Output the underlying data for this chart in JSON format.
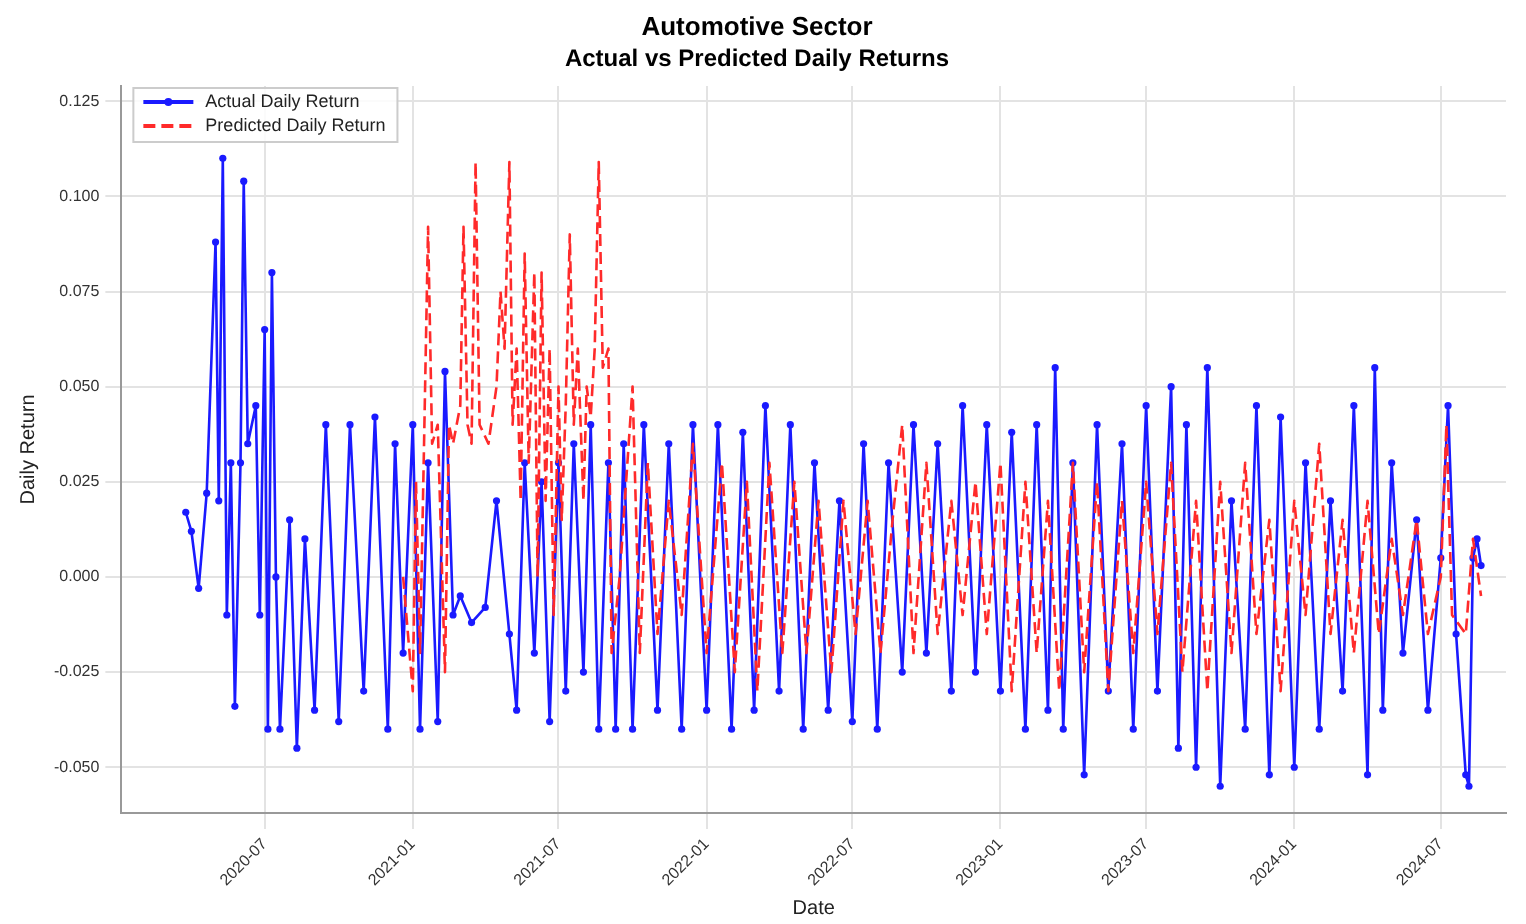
{
  "chart_data": {
    "type": "line",
    "title": "Automotive Sector",
    "subtitle": "Actual vs Predicted Daily Returns",
    "xlabel": "Date",
    "ylabel": "Daily Return",
    "xlim": [
      "2020-01-05",
      "2024-09-20"
    ],
    "xticks": [
      "2020-07",
      "2021-01",
      "2021-07",
      "2022-01",
      "2022-07",
      "2023-01",
      "2023-07",
      "2024-01",
      "2024-07"
    ],
    "ylim": [
      -0.062,
      0.129
    ],
    "yticks": [
      {
        "value": -0.05,
        "label": "-0.050"
      },
      -0.025,
      {
        "value": 0,
        "label": "0.000"
      },
      0.025,
      {
        "value": 0.05,
        "label": "0.050"
      },
      0.075,
      {
        "value": 0.1,
        "label": "0.100"
      },
      0.125
    ],
    "grid": true,
    "legend": "top left",
    "series": [
      {
        "name": "Actual Daily Return",
        "color": "#1a1aff",
        "marker": "circle",
        "line_style": "solid",
        "x": [
          "2020-03-25",
          "2020-04-01",
          "2020-04-10",
          "2020-04-20",
          "2020-05-01",
          "2020-05-05",
          "2020-05-10",
          "2020-05-15",
          "2020-05-20",
          "2020-05-25",
          "2020-06-01",
          "2020-06-05",
          "2020-06-10",
          "2020-06-20",
          "2020-06-25",
          "2020-07-01",
          "2020-07-05",
          "2020-07-10",
          "2020-07-15",
          "2020-07-20",
          "2020-08-01",
          "2020-08-10",
          "2020-08-20",
          "2020-09-01",
          "2020-09-15",
          "2020-10-01",
          "2020-10-15",
          "2020-11-01",
          "2020-11-15",
          "2020-12-01",
          "2020-12-10",
          "2020-12-20",
          "2021-01-01",
          "2021-01-10",
          "2021-01-20",
          "2021-02-01",
          "2021-02-10",
          "2021-02-20",
          "2021-03-01",
          "2021-03-15",
          "2021-04-01",
          "2021-04-15",
          "2021-05-01",
          "2021-05-10",
          "2021-05-20",
          "2021-06-01",
          "2021-06-10",
          "2021-06-20",
          "2021-07-01",
          "2021-07-10",
          "2021-07-20",
          "2021-08-01",
          "2021-08-10",
          "2021-08-20",
          "2021-09-01",
          "2021-09-10",
          "2021-09-20",
          "2021-10-01",
          "2021-10-15",
          "2021-11-01",
          "2021-11-15",
          "2021-12-01",
          "2021-12-15",
          "2022-01-01",
          "2022-01-15",
          "2022-02-01",
          "2022-02-15",
          "2022-03-01",
          "2022-03-15",
          "2022-04-01",
          "2022-04-15",
          "2022-05-01",
          "2022-05-15",
          "2022-06-01",
          "2022-06-15",
          "2022-07-01",
          "2022-07-15",
          "2022-08-01",
          "2022-08-15",
          "2022-09-01",
          "2022-09-15",
          "2022-10-01",
          "2022-10-15",
          "2022-11-01",
          "2022-11-15",
          "2022-12-01",
          "2022-12-15",
          "2023-01-01",
          "2023-01-15",
          "2023-02-01",
          "2023-02-15",
          "2023-03-01",
          "2023-03-10",
          "2023-03-20",
          "2023-04-01",
          "2023-04-15",
          "2023-05-01",
          "2023-05-15",
          "2023-06-01",
          "2023-06-15",
          "2023-07-01",
          "2023-07-15",
          "2023-08-01",
          "2023-08-10",
          "2023-08-20",
          "2023-09-01",
          "2023-09-15",
          "2023-10-01",
          "2023-10-15",
          "2023-11-01",
          "2023-11-15",
          "2023-12-01",
          "2023-12-15",
          "2024-01-01",
          "2024-01-15",
          "2024-02-01",
          "2024-02-15",
          "2024-03-01",
          "2024-03-15",
          "2024-04-01",
          "2024-04-10",
          "2024-04-20",
          "2024-05-01",
          "2024-05-15",
          "2024-06-01",
          "2024-06-15",
          "2024-07-01",
          "2024-07-10",
          "2024-07-20",
          "2024-08-01",
          "2024-08-05",
          "2024-08-10",
          "2024-08-15",
          "2024-08-20"
        ],
        "values": [
          0.017,
          0.012,
          -0.003,
          0.022,
          0.088,
          0.02,
          0.11,
          -0.01,
          0.03,
          -0.034,
          0.03,
          0.104,
          0.035,
          0.045,
          -0.01,
          0.065,
          -0.04,
          0.08,
          0.0,
          -0.04,
          0.015,
          -0.045,
          0.01,
          -0.035,
          0.04,
          -0.038,
          0.04,
          -0.03,
          0.042,
          -0.04,
          0.035,
          -0.02,
          0.04,
          -0.04,
          0.03,
          -0.038,
          0.054,
          -0.01,
          -0.005,
          -0.012,
          -0.008,
          0.02,
          -0.015,
          -0.035,
          0.03,
          -0.02,
          0.025,
          -0.038,
          0.03,
          -0.03,
          0.035,
          -0.025,
          0.04,
          -0.04,
          0.03,
          -0.04,
          0.035,
          -0.04,
          0.04,
          -0.035,
          0.035,
          -0.04,
          0.04,
          -0.035,
          0.04,
          -0.04,
          0.038,
          -0.035,
          0.045,
          -0.03,
          0.04,
          -0.04,
          0.03,
          -0.035,
          0.02,
          -0.038,
          0.035,
          -0.04,
          0.03,
          -0.025,
          0.04,
          -0.02,
          0.035,
          -0.03,
          0.045,
          -0.025,
          0.04,
          -0.03,
          0.038,
          -0.04,
          0.04,
          -0.035,
          0.055,
          -0.04,
          0.03,
          -0.052,
          0.04,
          -0.03,
          0.035,
          -0.04,
          0.045,
          -0.03,
          0.05,
          -0.045,
          0.04,
          -0.05,
          0.055,
          -0.055,
          0.02,
          -0.04,
          0.045,
          -0.052,
          0.042,
          -0.05,
          0.03,
          -0.04,
          0.02,
          -0.03,
          0.045,
          -0.052,
          0.055,
          -0.035,
          0.03,
          -0.02,
          0.015,
          -0.035,
          0.005,
          0.045,
          -0.015,
          -0.052,
          -0.055,
          0.005,
          0.01,
          0.003
        ]
      },
      {
        "name": "Predicted Daily Return",
        "color": "#ff2a2a",
        "marker": "none",
        "line_style": "dashed",
        "x": [
          "2020-12-20",
          "2021-01-01",
          "2021-01-05",
          "2021-01-10",
          "2021-01-15",
          "2021-01-20",
          "2021-01-25",
          "2021-02-01",
          "2021-02-10",
          "2021-02-15",
          "2021-02-20",
          "2021-03-01",
          "2021-03-05",
          "2021-03-10",
          "2021-03-15",
          "2021-03-20",
          "2021-03-25",
          "2021-04-05",
          "2021-04-15",
          "2021-04-20",
          "2021-04-25",
          "2021-05-01",
          "2021-05-05",
          "2021-05-10",
          "2021-05-15",
          "2021-05-20",
          "2021-05-25",
          "2021-06-01",
          "2021-06-05",
          "2021-06-10",
          "2021-06-15",
          "2021-06-20",
          "2021-06-25",
          "2021-07-01",
          "2021-07-05",
          "2021-07-10",
          "2021-07-15",
          "2021-07-20",
          "2021-07-25",
          "2021-08-01",
          "2021-08-05",
          "2021-08-10",
          "2021-08-15",
          "2021-08-20",
          "2021-08-25",
          "2021-09-01",
          "2021-09-05",
          "2021-09-15",
          "2021-10-01",
          "2021-10-10",
          "2021-10-20",
          "2021-11-01",
          "2021-11-15",
          "2021-12-01",
          "2021-12-15",
          "2022-01-01",
          "2022-01-20",
          "2022-02-05",
          "2022-02-20",
          "2022-03-05",
          "2022-03-20",
          "2022-04-05",
          "2022-04-20",
          "2022-05-05",
          "2022-05-20",
          "2022-06-05",
          "2022-06-20",
          "2022-07-05",
          "2022-07-20",
          "2022-08-05",
          "2022-08-20",
          "2022-09-01",
          "2022-09-15",
          "2022-10-01",
          "2022-10-15",
          "2022-11-01",
          "2022-11-15",
          "2022-12-01",
          "2022-12-15",
          "2023-01-01",
          "2023-01-15",
          "2023-02-01",
          "2023-02-15",
          "2023-03-01",
          "2023-03-15",
          "2023-04-01",
          "2023-04-15",
          "2023-05-01",
          "2023-05-15",
          "2023-06-01",
          "2023-06-15",
          "2023-07-01",
          "2023-07-15",
          "2023-08-01",
          "2023-08-15",
          "2023-09-01",
          "2023-09-15",
          "2023-10-01",
          "2023-10-15",
          "2023-11-01",
          "2023-11-15",
          "2023-12-01",
          "2023-12-15",
          "2024-01-01",
          "2024-01-15",
          "2024-02-01",
          "2024-02-15",
          "2024-03-01",
          "2024-03-15",
          "2024-04-01",
          "2024-04-15",
          "2024-05-01",
          "2024-05-15",
          "2024-06-01",
          "2024-06-15",
          "2024-07-01",
          "2024-07-08",
          "2024-07-15",
          "2024-08-01",
          "2024-08-10",
          "2024-08-20"
        ],
        "values": [
          0.0,
          -0.03,
          0.025,
          -0.02,
          0.035,
          0.092,
          0.035,
          0.04,
          -0.025,
          0.04,
          0.035,
          0.045,
          0.092,
          0.04,
          0.035,
          0.109,
          0.04,
          0.035,
          0.05,
          0.075,
          0.06,
          0.109,
          0.04,
          0.06,
          0.02,
          0.085,
          0.03,
          0.08,
          0.0,
          0.08,
          0.02,
          0.06,
          -0.01,
          0.05,
          0.015,
          0.045,
          0.09,
          0.04,
          0.06,
          0.02,
          0.05,
          0.042,
          0.06,
          0.109,
          0.055,
          0.06,
          -0.02,
          0.0,
          0.05,
          -0.02,
          0.03,
          -0.015,
          0.02,
          -0.01,
          0.035,
          -0.02,
          0.03,
          -0.025,
          0.025,
          -0.03,
          0.03,
          -0.02,
          0.025,
          -0.02,
          0.02,
          -0.025,
          0.02,
          -0.015,
          0.02,
          -0.02,
          0.015,
          0.04,
          -0.02,
          0.03,
          -0.015,
          0.02,
          -0.01,
          0.025,
          -0.015,
          0.03,
          -0.03,
          0.025,
          -0.02,
          0.02,
          -0.03,
          0.03,
          -0.025,
          0.025,
          -0.03,
          0.02,
          -0.02,
          0.025,
          -0.015,
          0.03,
          -0.025,
          0.02,
          -0.03,
          0.025,
          -0.02,
          0.03,
          -0.015,
          0.015,
          -0.03,
          0.02,
          -0.01,
          0.035,
          -0.015,
          0.015,
          -0.02,
          0.02,
          -0.015,
          0.01,
          -0.01,
          0.015,
          -0.015,
          0.0,
          0.04,
          -0.01,
          -0.015,
          0.01,
          -0.005
        ]
      }
    ]
  }
}
